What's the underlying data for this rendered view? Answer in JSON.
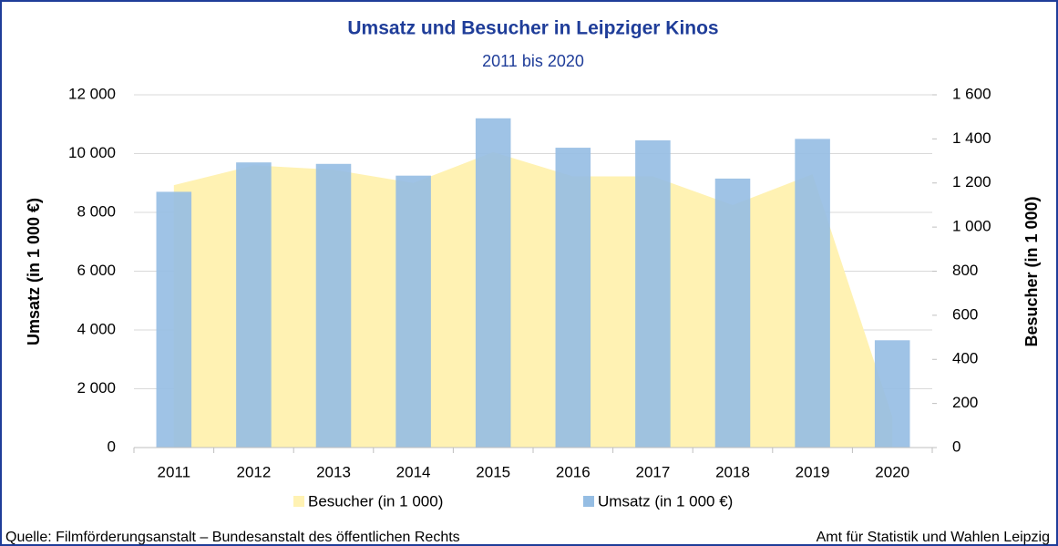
{
  "chart_data": {
    "type": "bar-area",
    "title": "Umsatz und Besucher in Leipziger Kinos",
    "subtitle": "2011 bis 2020",
    "ylabel": "Umsatz (in 1 000 €)",
    "y2label": "Besucher (in 1 000)",
    "categories": [
      "2011",
      "2012",
      "2013",
      "2014",
      "2015",
      "2016",
      "2017",
      "2018",
      "2019",
      "2020"
    ],
    "series": [
      {
        "name": "Besucher (in 1 000)",
        "type": "area",
        "axis": "y2",
        "color": "#fff2b3",
        "values": [
          1190,
          1280,
          1260,
          1200,
          1340,
          1230,
          1230,
          1100,
          1240,
          140
        ]
      },
      {
        "name": "Umsatz (in 1 000 €)",
        "type": "bar",
        "axis": "y",
        "color": "#95bde3",
        "values": [
          8700,
          9700,
          9650,
          9250,
          11200,
          10200,
          10450,
          9150,
          10500,
          3650
        ]
      }
    ],
    "ylim": [
      0,
      12000
    ],
    "yticks": [
      0,
      {
        "value": 2000,
        "label": "2 000"
      },
      {
        "value": 4000,
        "label": "4 000"
      },
      {
        "value": 6000,
        "label": "6 000"
      },
      {
        "value": 8000,
        "label": "8 000"
      },
      {
        "value": 10000,
        "label": "10 000"
      },
      {
        "value": 12000,
        "label": "12 000"
      }
    ],
    "y2lim": [
      0,
      1600
    ],
    "y2ticks": [
      0,
      200,
      400,
      600,
      800,
      {
        "value": 1000,
        "label": "1 000"
      },
      {
        "value": 1200,
        "label": "1 200"
      },
      {
        "value": 1400,
        "label": "1 400"
      },
      {
        "value": 1600,
        "label": "1 600"
      }
    ],
    "grid": true,
    "legend": "bottom",
    "source": "Quelle: Filmförderungsanstalt – Bundesanstalt des öffentlichen Rechts",
    "credit": "Amt für Statistik und Wahlen Leipzig"
  }
}
